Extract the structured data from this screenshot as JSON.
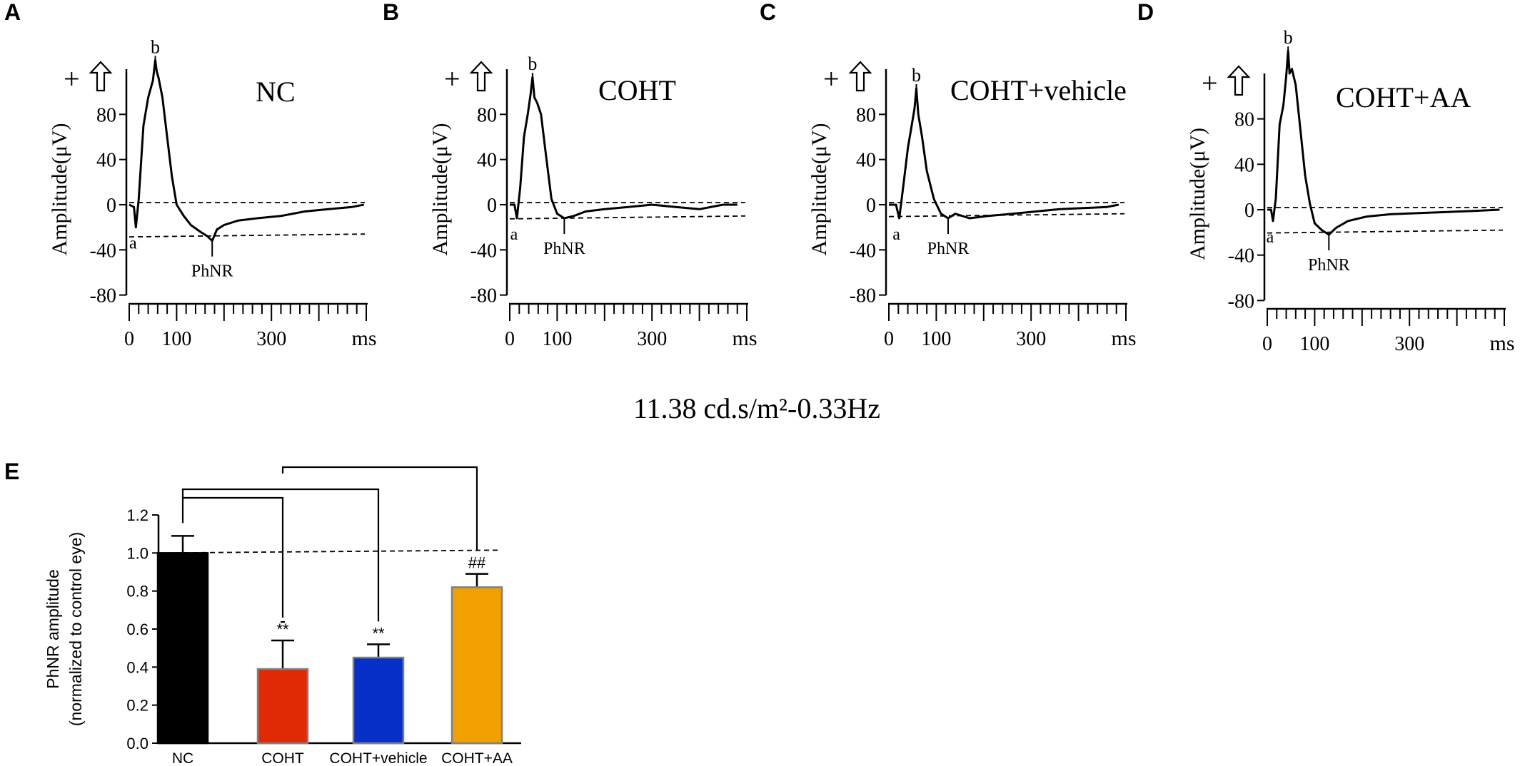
{
  "stimulus_label": "11.38 cd.s/m²-0.33Hz",
  "chart_data": [
    {
      "panel": "A",
      "type": "line",
      "title": "NC",
      "ylabel": "Amplitude(μV)",
      "xlabel": "ms",
      "polarity_label": "+",
      "yticks": [
        "80",
        "40",
        "0",
        "-40",
        "-80"
      ],
      "xticks": [
        "0",
        "100",
        "300"
      ],
      "ylim": [
        -80,
        120
      ],
      "xlim": [
        0,
        500
      ],
      "wave_labels": {
        "b": "b",
        "a": "a",
        "phnr": "PhNR"
      },
      "baseline_uV": 0,
      "phnr_level_uV": -26,
      "x": [
        0,
        10,
        14,
        20,
        30,
        40,
        50,
        55,
        58,
        62,
        70,
        80,
        90,
        100,
        115,
        130,
        150,
        165,
        175,
        185,
        200,
        230,
        270,
        320,
        370,
        420,
        470,
        495
      ],
      "y": [
        0,
        -2,
        -20,
        5,
        70,
        95,
        110,
        128,
        118,
        112,
        95,
        60,
        25,
        0,
        -10,
        -18,
        -24,
        -28,
        -32,
        -22,
        -18,
        -14,
        -12,
        -10,
        -6,
        -4,
        -2,
        0
      ]
    },
    {
      "panel": "B",
      "type": "line",
      "title": "COHT",
      "ylabel": "Amplitude(μV)",
      "xlabel": "ms",
      "polarity_label": "+",
      "yticks": [
        "80",
        "40",
        "0",
        "-40",
        "-80"
      ],
      "xticks": [
        "0",
        "100",
        "300"
      ],
      "ylim": [
        -80,
        120
      ],
      "xlim": [
        0,
        500
      ],
      "wave_labels": {
        "b": "b",
        "a": "a",
        "phnr": "PhNR"
      },
      "baseline_uV": 0,
      "phnr_level_uV": -10,
      "x": [
        0,
        10,
        15,
        22,
        30,
        38,
        44,
        48,
        52,
        58,
        66,
        76,
        88,
        100,
        115,
        135,
        160,
        200,
        250,
        300,
        350,
        400,
        450,
        480
      ],
      "y": [
        0,
        0,
        -12,
        15,
        60,
        80,
        98,
        113,
        95,
        90,
        80,
        45,
        5,
        -8,
        -12,
        -10,
        -6,
        -4,
        -2,
        0,
        -2,
        -4,
        0,
        0
      ]
    },
    {
      "panel": "C",
      "type": "line",
      "title": "COHT+vehicle",
      "ylabel": "Amplitude(μV)",
      "xlabel": "ms",
      "polarity_label": "+",
      "yticks": [
        "80",
        "40",
        "0",
        "-40",
        "-80"
      ],
      "xticks": [
        "0",
        "100",
        "300"
      ],
      "ylim": [
        -80,
        120
      ],
      "xlim": [
        0,
        500
      ],
      "wave_labels": {
        "b": "b",
        "a": "a",
        "phnr": "PhNR"
      },
      "baseline_uV": 0,
      "phnr_level_uV": -8,
      "x": [
        0,
        15,
        22,
        30,
        40,
        48,
        54,
        58,
        62,
        70,
        80,
        95,
        110,
        125,
        140,
        170,
        210,
        260,
        310,
        360,
        410,
        460,
        485
      ],
      "y": [
        0,
        0,
        -12,
        15,
        50,
        70,
        85,
        103,
        80,
        60,
        30,
        5,
        -8,
        -12,
        -8,
        -12,
        -10,
        -8,
        -6,
        -4,
        -3,
        -2,
        0
      ]
    },
    {
      "panel": "D",
      "type": "line",
      "title": "COHT+AA",
      "ylabel": "Amplitude(μV)",
      "xlabel": "ms",
      "polarity_label": "+",
      "yticks": [
        "80",
        "40",
        "0",
        "-40",
        "-80"
      ],
      "xticks": [
        "0",
        "100",
        "300"
      ],
      "ylim": [
        -80,
        120
      ],
      "xlim": [
        0,
        500
      ],
      "wave_labels": {
        "b": "b",
        "a": "a",
        "phnr": "PhNR"
      },
      "baseline_uV": 0,
      "phnr_level_uV": -18,
      "x": [
        0,
        8,
        12,
        18,
        26,
        34,
        40,
        44,
        47,
        52,
        60,
        70,
        80,
        90,
        100,
        115,
        130,
        145,
        170,
        210,
        260,
        320,
        380,
        440,
        490
      ],
      "y": [
        0,
        0,
        -10,
        10,
        75,
        92,
        118,
        140,
        120,
        124,
        110,
        70,
        30,
        5,
        -12,
        -18,
        -22,
        -16,
        -10,
        -6,
        -4,
        -3,
        -2,
        -1,
        0
      ]
    },
    {
      "panel": "E",
      "type": "bar",
      "ylabel": "PhNR amplitude",
      "ylabel2": "(normalized to control eye)",
      "categories": [
        "NC",
        "COHT",
        "COHT+vehicle",
        "COHT+AA"
      ],
      "values": [
        1.0,
        0.39,
        0.45,
        0.82
      ],
      "errors": [
        0.09,
        0.15,
        0.07,
        0.07
      ],
      "colors": [
        "#000000",
        "#e02a06",
        "#0730c8",
        "#f0a000"
      ],
      "annotations": [
        "",
        "**",
        "**",
        "##"
      ],
      "ylim": [
        0,
        1.2
      ],
      "yticks": [
        "0.0",
        "0.2",
        "0.4",
        "0.6",
        "0.8",
        "1.0",
        "1.2"
      ],
      "reference_line": 1.0
    }
  ]
}
